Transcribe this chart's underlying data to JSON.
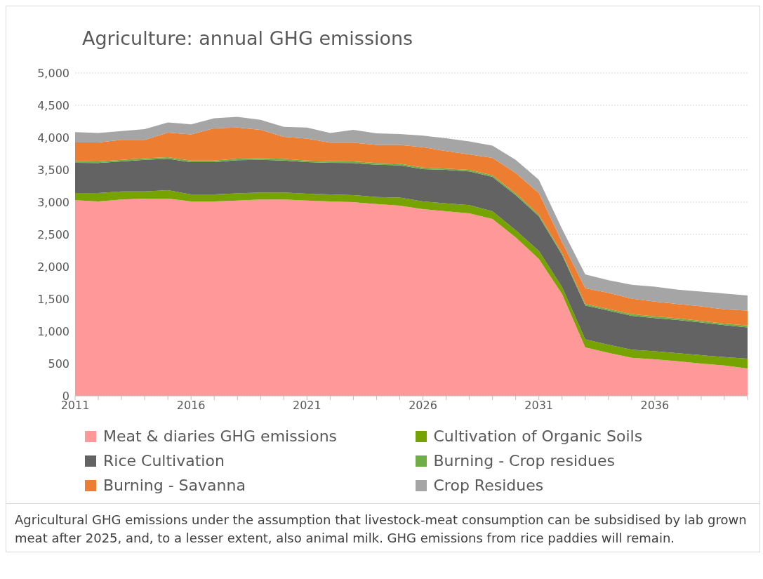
{
  "chart_data": {
    "type": "area",
    "stacked": true,
    "title": "Agriculture: annual GHG emissions",
    "categories": [
      "2011",
      null,
      null,
      null,
      null,
      "2016",
      null,
      null,
      null,
      null,
      "2021",
      null,
      null,
      null,
      null,
      "2026",
      null,
      null,
      null,
      null,
      "2031",
      null,
      null,
      null,
      null,
      "2036",
      null,
      null,
      null,
      null
    ],
    "ylim": [
      0,
      5000
    ],
    "yticks": [
      0,
      {
        "value": 500,
        "label": "500"
      },
      {
        "value": 1000,
        "label": "1,000"
      },
      {
        "value": 1500,
        "label": "1,500"
      },
      {
        "value": 2000,
        "label": "2,000"
      },
      {
        "value": 2500,
        "label": "2,500"
      },
      {
        "value": 3000,
        "label": "3,000"
      },
      {
        "value": 3500,
        "label": "3,500"
      },
      {
        "value": 4000,
        "label": "4,000"
      },
      {
        "value": 4500,
        "label": "4,500"
      },
      {
        "value": 5000,
        "label": "5,000"
      }
    ],
    "grid": "y",
    "legend": "bottom",
    "series": [
      {
        "name": "Meat & diaries GHG emissions",
        "color": "#ff9999",
        "values": [
          3030,
          3010,
          3040,
          3055,
          3055,
          3010,
          3010,
          3025,
          3040,
          3040,
          3025,
          3010,
          3000,
          2970,
          2945,
          2890,
          2860,
          2825,
          2740,
          2455,
          2120,
          1575,
          750,
          665,
          590,
          565,
          535,
          500,
          470,
          425
        ]
      },
      {
        "name": "Cultivation of Organic Soils",
        "color": "#77a300",
        "values": [
          110,
          130,
          125,
          110,
          130,
          110,
          110,
          110,
          110,
          110,
          105,
          110,
          110,
          110,
          125,
          120,
          120,
          130,
          120,
          110,
          125,
          110,
          125,
          125,
          125,
          125,
          125,
          130,
          130,
          150
        ]
      },
      {
        "name": "Rice Cultivation",
        "color": "#636363",
        "values": [
          470,
          465,
          465,
          490,
          485,
          500,
          500,
          515,
          505,
          495,
          490,
          490,
          495,
          500,
          500,
          500,
          520,
          520,
          530,
          545,
          535,
          500,
          525,
          530,
          525,
          515,
          515,
          505,
          495,
          485
        ]
      },
      {
        "name": "Burning - Crop residues",
        "color": "#70ad47",
        "values": [
          25,
          25,
          25,
          25,
          25,
          25,
          25,
          25,
          25,
          25,
          25,
          25,
          25,
          25,
          25,
          25,
          20,
          25,
          25,
          25,
          25,
          25,
          25,
          25,
          25,
          25,
          25,
          25,
          25,
          30
        ]
      },
      {
        "name": "Burning - Savanna",
        "color": "#ed7d31",
        "values": [
          290,
          295,
          310,
          285,
          380,
          405,
          500,
          480,
          440,
          340,
          340,
          285,
          290,
          280,
          290,
          315,
          270,
          240,
          270,
          315,
          335,
          170,
          240,
          250,
          240,
          230,
          220,
          225,
          220,
          230
        ]
      },
      {
        "name": "Crop Residues",
        "color": "#a5a5a5",
        "values": [
          160,
          145,
          135,
          165,
          160,
          155,
          155,
          165,
          155,
          155,
          170,
          150,
          200,
          180,
          170,
          180,
          200,
          200,
          190,
          205,
          205,
          205,
          215,
          195,
          215,
          230,
          225,
          230,
          245,
          235
        ]
      }
    ],
    "annotations": [
      "Agricultural GHG emissions under the assumption that livestock-meat consumption can be subsidised by lab grown meat after 2025, and, to a lesser extent, also animal milk. GHG emissions from rice paddies will remain."
    ]
  }
}
